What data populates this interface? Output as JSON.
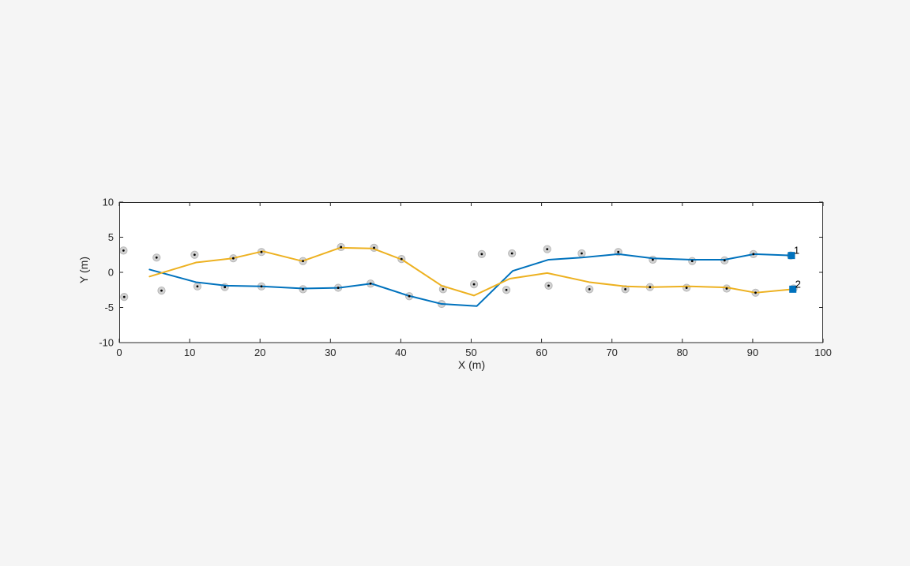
{
  "figure": {
    "background_color": "#f5f5f5",
    "plot_background_color": "#ffffff",
    "axis_color": "#262626"
  },
  "chart_data": {
    "type": "scatter",
    "subtype": "target-tracking-plot (tracks + detections)",
    "title": "",
    "xlabel": "X (m)",
    "ylabel": "Y (m)",
    "xlim": [
      0,
      100
    ],
    "ylim": [
      -10,
      10
    ],
    "xticks": [
      0,
      10,
      20,
      30,
      40,
      50,
      60,
      70,
      80,
      90,
      100
    ],
    "yticks": [
      -10,
      -5,
      0,
      5,
      10
    ],
    "grid": false,
    "box": true,
    "tick_dir": "in",
    "legend_position": "none",
    "detections": {
      "marker": "circle",
      "fill": "#d2d2d2",
      "edge": "#b8b8b8",
      "dot_color": "#000000",
      "points": [
        [
          0.6,
          3.1
        ],
        [
          5.3,
          2.1
        ],
        [
          10.7,
          2.5
        ],
        [
          16.2,
          2.0
        ],
        [
          20.2,
          2.9
        ],
        [
          26.1,
          1.6
        ],
        [
          31.5,
          3.6
        ],
        [
          36.2,
          3.5
        ],
        [
          40.1,
          1.9
        ],
        [
          51.5,
          2.6
        ],
        [
          55.8,
          2.7
        ],
        [
          60.8,
          3.3
        ],
        [
          65.7,
          2.7
        ],
        [
          70.9,
          2.9
        ],
        [
          75.8,
          1.8
        ],
        [
          81.4,
          1.6
        ],
        [
          86.0,
          1.7
        ],
        [
          90.1,
          2.6
        ],
        [
          95.4,
          2.4
        ],
        [
          0.7,
          -3.5
        ],
        [
          6.0,
          -2.6
        ],
        [
          11.1,
          -2.0
        ],
        [
          15.0,
          -2.1
        ],
        [
          20.2,
          -2.0
        ],
        [
          26.1,
          -2.4
        ],
        [
          31.1,
          -2.2
        ],
        [
          35.7,
          -1.6
        ],
        [
          41.2,
          -3.4
        ],
        [
          46.0,
          -2.4
        ],
        [
          50.4,
          -1.7
        ],
        [
          55.0,
          -2.5
        ],
        [
          61.0,
          -1.9
        ],
        [
          66.8,
          -2.4
        ],
        [
          71.9,
          -2.4
        ],
        [
          75.4,
          -2.1
        ],
        [
          80.6,
          -2.2
        ],
        [
          86.3,
          -2.3
        ],
        [
          90.4,
          -2.9
        ],
        [
          95.8,
          -2.3
        ]
      ],
      "circles_without_dot": [
        [
          45.8,
          -4.5
        ]
      ]
    },
    "tracks": [
      {
        "label": "1",
        "line_color": "#0072bd",
        "head_marker": "square",
        "head_color": "#0072bd",
        "points": [
          [
            4.3,
            0.4
          ],
          [
            10.9,
            -1.4
          ],
          [
            15.2,
            -1.9
          ],
          [
            20.2,
            -2.0
          ],
          [
            26.0,
            -2.3
          ],
          [
            31.2,
            -2.2
          ],
          [
            35.8,
            -1.6
          ],
          [
            41.0,
            -3.3
          ],
          [
            45.8,
            -4.5
          ],
          [
            50.8,
            -4.8
          ],
          [
            55.9,
            0.2
          ],
          [
            61.0,
            1.8
          ],
          [
            65.7,
            2.1
          ],
          [
            70.9,
            2.6
          ],
          [
            75.8,
            2.0
          ],
          [
            81.4,
            1.8
          ],
          [
            86.0,
            1.8
          ],
          [
            90.2,
            2.6
          ],
          [
            95.5,
            2.4
          ]
        ]
      },
      {
        "label": "2",
        "line_color": "#edb120",
        "head_marker": "square",
        "head_color": "#0072bd",
        "points": [
          [
            4.3,
            -0.6
          ],
          [
            10.9,
            1.4
          ],
          [
            16.1,
            2.0
          ],
          [
            20.4,
            3.0
          ],
          [
            26.0,
            1.6
          ],
          [
            31.4,
            3.5
          ],
          [
            36.0,
            3.4
          ],
          [
            40.2,
            1.8
          ],
          [
            45.8,
            -1.9
          ],
          [
            50.4,
            -3.3
          ],
          [
            55.5,
            -0.9
          ],
          [
            60.8,
            -0.1
          ],
          [
            66.8,
            -1.4
          ],
          [
            71.9,
            -2.0
          ],
          [
            75.6,
            -2.1
          ],
          [
            81.0,
            -2.0
          ],
          [
            86.3,
            -2.15
          ],
          [
            90.4,
            -2.9
          ],
          [
            95.7,
            -2.4
          ]
        ]
      }
    ]
  }
}
